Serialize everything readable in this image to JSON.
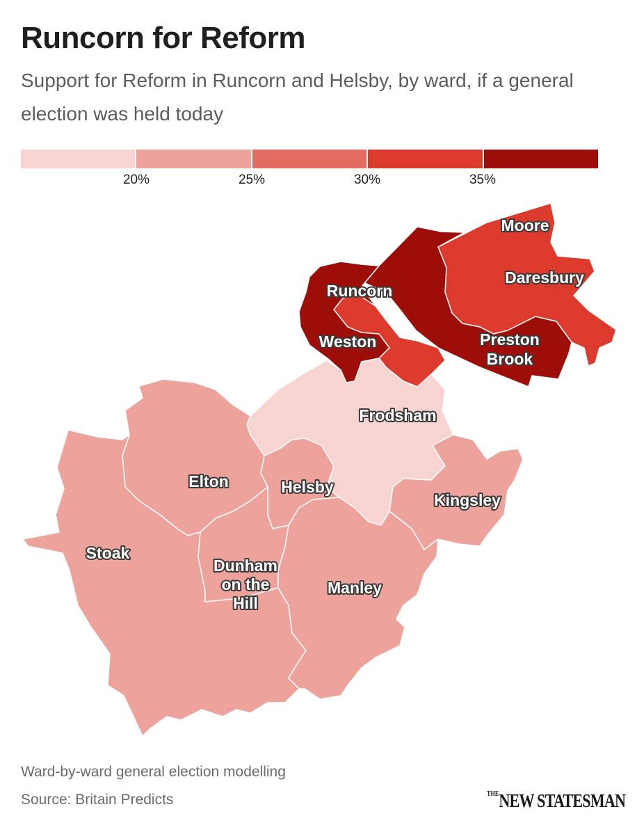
{
  "title": "Runcorn for Reform",
  "subtitle": "Support for Reform in Runcorn and Helsby, by ward, if a general election was held today",
  "legend": {
    "bins": [
      {
        "color": "#f7d4d1"
      },
      {
        "color": "#eda29c"
      },
      {
        "color": "#e36c62"
      },
      {
        "color": "#db3a2c"
      },
      {
        "color": "#9e0e08"
      }
    ],
    "ticks": [
      "20%",
      "25%",
      "30%",
      "35%"
    ]
  },
  "wards": {
    "runcorn": {
      "label": "Runcorn",
      "band": "35% or more"
    },
    "weston": {
      "label": "Weston",
      "band": "35% or more"
    },
    "preston_brook": {
      "label_line1": "Preston",
      "label_line2": "Brook",
      "band": "35% or more"
    },
    "moore": {
      "label": "Moore",
      "band": "30–35%"
    },
    "daresbury": {
      "label": "Daresbury",
      "band": "30–35%"
    },
    "frodsham": {
      "label": "Frodsham",
      "band": "below 20%"
    },
    "elton": {
      "label": "Elton",
      "band": "20–25%"
    },
    "helsby": {
      "label": "Helsby",
      "band": "20–25%"
    },
    "kingsley": {
      "label": "Kingsley",
      "band": "20–25%"
    },
    "stoak": {
      "label": "Stoak",
      "band": "20–25%"
    },
    "dunham": {
      "label_line1": "Dunham",
      "label_line2": "on the",
      "label_line3": "Hill",
      "band": "20–25%"
    },
    "manley": {
      "label": "Manley",
      "band": "20–25%"
    }
  },
  "footer": {
    "note": "Ward-by-ward general election modelling",
    "source": "Source: Britain Predicts",
    "logo_small": "THE",
    "logo": "NEW STATESMAN"
  }
}
